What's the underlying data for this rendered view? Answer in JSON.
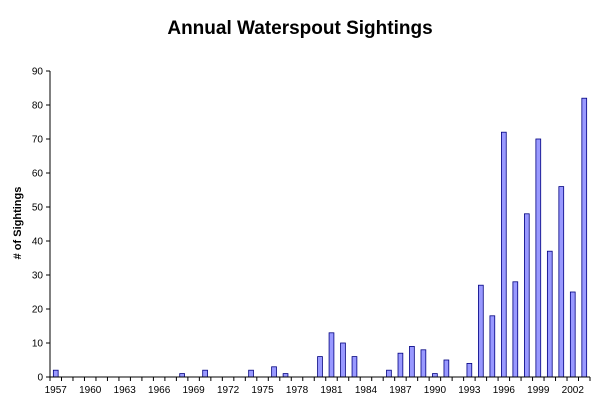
{
  "chart_data": {
    "type": "bar",
    "title": "Annual Waterspout Sightings",
    "xlabel": "",
    "ylabel": "# of Sightings",
    "ylim": [
      0,
      90
    ],
    "yticks": [
      0,
      10,
      20,
      30,
      40,
      50,
      60,
      70,
      80,
      90
    ],
    "grid": false,
    "legend": "none",
    "bar_color": "#9999ff",
    "bar_edge_color": "#000080",
    "x": [
      1957,
      1958,
      1959,
      1960,
      1961,
      1962,
      1963,
      1964,
      1965,
      1966,
      1967,
      1968,
      1969,
      1970,
      1971,
      1972,
      1973,
      1974,
      1975,
      1976,
      1977,
      1978,
      1979,
      1980,
      1981,
      1982,
      1983,
      1984,
      1985,
      1986,
      1987,
      1988,
      1989,
      1990,
      1991,
      1992,
      1993,
      1994,
      1995,
      1996,
      1997,
      1998,
      1999,
      2000,
      2001,
      2002,
      2003
    ],
    "values": [
      2,
      0,
      0,
      0,
      0,
      0,
      0,
      0,
      0,
      0,
      0,
      1,
      0,
      2,
      0,
      0,
      0,
      2,
      0,
      3,
      1,
      0,
      0,
      6,
      13,
      10,
      6,
      0,
      0,
      2,
      7,
      9,
      8,
      1,
      5,
      0,
      4,
      27,
      18,
      72,
      28,
      48,
      70,
      37,
      56,
      25,
      82
    ],
    "xtick_labels": [
      "1957",
      "1960",
      "1963",
      "1966",
      "1969",
      "1972",
      "1975",
      "1978",
      "1981",
      "1984",
      "1987",
      "1990",
      "1993",
      "1996",
      "1999",
      "2002"
    ]
  }
}
